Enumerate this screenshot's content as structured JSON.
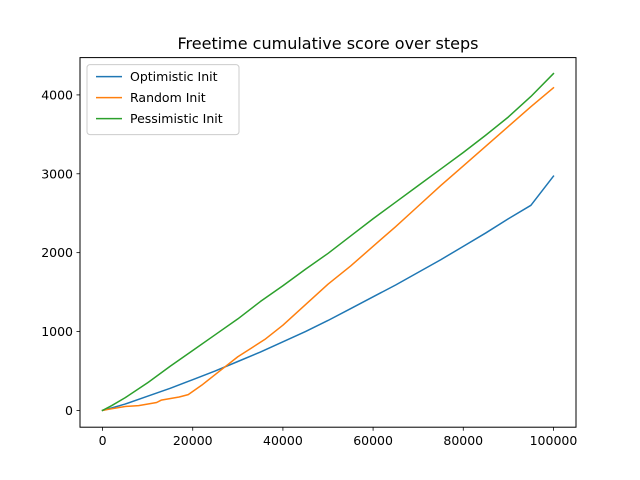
{
  "chart_data": {
    "type": "line",
    "title": "Freetime cumulative score over steps",
    "xlabel": "",
    "ylabel": "",
    "xlim": [
      -5000,
      105000
    ],
    "ylim": [
      -213,
      4473
    ],
    "xticks": [
      0,
      20000,
      40000,
      60000,
      80000,
      100000
    ],
    "yticks": [
      0,
      1000,
      2000,
      3000,
      4000
    ],
    "legend_position": "upper-left",
    "grid": false,
    "series": [
      {
        "name": "Optimistic Init",
        "color": "#1f77b4",
        "x": [
          0,
          2000,
          5000,
          10000,
          15000,
          20000,
          25000,
          30000,
          35000,
          40000,
          45000,
          50000,
          55000,
          60000,
          65000,
          70000,
          75000,
          80000,
          85000,
          90000,
          95000,
          100000
        ],
        "y": [
          0,
          30,
          80,
          180,
          280,
          390,
          500,
          620,
          740,
          870,
          1000,
          1140,
          1290,
          1440,
          1590,
          1750,
          1910,
          2080,
          2250,
          2430,
          2600,
          2970
        ]
      },
      {
        "name": "Random Init",
        "color": "#ff7f0e",
        "x": [
          0,
          2000,
          5000,
          8000,
          12000,
          13000,
          17000,
          19000,
          22000,
          26000,
          30000,
          33000,
          36000,
          40000,
          45000,
          50000,
          55000,
          60000,
          65000,
          70000,
          75000,
          80000,
          85000,
          90000,
          95000,
          100000
        ],
        "y": [
          0,
          20,
          50,
          60,
          100,
          130,
          170,
          200,
          320,
          500,
          680,
          790,
          900,
          1080,
          1340,
          1600,
          1830,
          2080,
          2330,
          2590,
          2850,
          3100,
          3350,
          3600,
          3850,
          4090
        ]
      },
      {
        "name": "Pessimistic Init",
        "color": "#2ca02c",
        "x": [
          0,
          2000,
          5000,
          10000,
          15000,
          20000,
          25000,
          30000,
          35000,
          40000,
          45000,
          50000,
          55000,
          60000,
          65000,
          70000,
          75000,
          80000,
          85000,
          90000,
          95000,
          100000
        ],
        "y": [
          0,
          60,
          160,
          350,
          560,
          760,
          960,
          1160,
          1380,
          1580,
          1790,
          1990,
          2210,
          2430,
          2640,
          2850,
          3060,
          3270,
          3490,
          3720,
          3980,
          4270
        ]
      }
    ]
  }
}
